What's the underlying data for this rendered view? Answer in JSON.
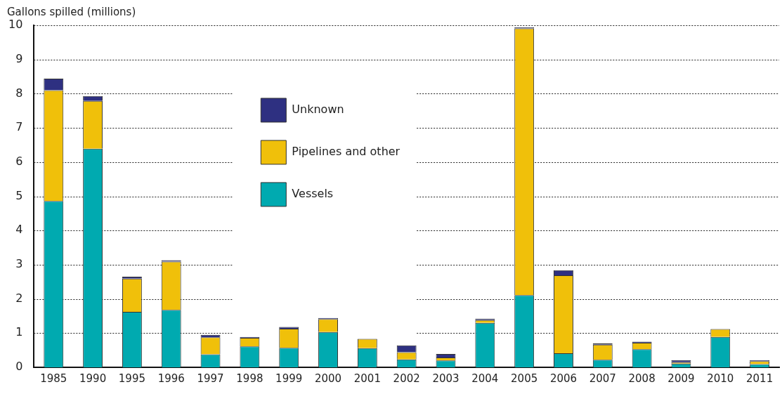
{
  "chart_data": {
    "type": "bar",
    "ylabel": "Gallons spilled (millions)",
    "categories": [
      "1985",
      "1990",
      "1995",
      "1996",
      "1997",
      "1998",
      "1999",
      "2000",
      "2001",
      "2002",
      "2003",
      "2004",
      "2005",
      "2006",
      "2007",
      "2008",
      "2009",
      "2010",
      "2011"
    ],
    "series": [
      {
        "name": "Vessels",
        "color": "#00aab0",
        "values": [
          4.86,
          6.39,
          1.62,
          1.68,
          0.38,
          0.61,
          0.57,
          1.03,
          0.56,
          0.23,
          0.2,
          1.3,
          2.11,
          0.41,
          0.22,
          0.53,
          0.11,
          0.89,
          0.09
        ]
      },
      {
        "name": "Pipelines and other",
        "color": "#f0c00a",
        "values": [
          3.24,
          1.4,
          0.97,
          1.41,
          0.5,
          0.25,
          0.56,
          0.38,
          0.27,
          0.21,
          0.09,
          0.08,
          7.8,
          2.28,
          0.44,
          0.19,
          0.04,
          0.23,
          0.09
        ]
      },
      {
        "name": "Unknown",
        "color": "#2e3081",
        "values": [
          0.34,
          0.14,
          0.06,
          0.04,
          0.07,
          0.03,
          0.05,
          0.03,
          null,
          0.2,
          0.1,
          0.04,
          0.03,
          0.15,
          0.04,
          0.03,
          0.06,
          null,
          0.03
        ]
      }
    ],
    "stacked": true,
    "ylim": [
      0,
      10
    ],
    "yticks": [
      0,
      1,
      2,
      3,
      4,
      5,
      6,
      7,
      8,
      9,
      10
    ],
    "grid": "y",
    "legend": "top"
  }
}
